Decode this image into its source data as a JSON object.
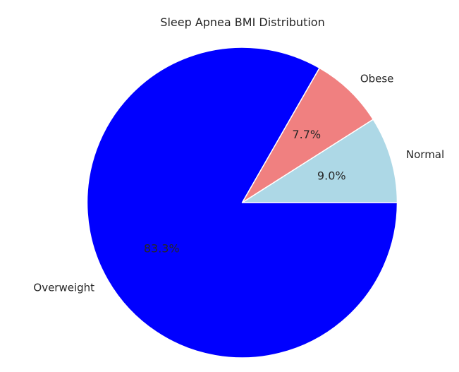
{
  "chart_data": {
    "type": "pie",
    "title": "Sleep Apnea BMI Distribution",
    "start_angle_deg": 0,
    "direction": "counterclockwise",
    "slices": [
      {
        "label": "Normal",
        "value": 9.0,
        "pct_text": "9.0%",
        "color": "#add8e6"
      },
      {
        "label": "Obese",
        "value": 7.7,
        "pct_text": "7.7%",
        "color": "#f08080"
      },
      {
        "label": "Overweight",
        "value": 83.3,
        "pct_text": "83.3%",
        "color": "#0000ff"
      }
    ],
    "wedge_edge_color": "#ffffff"
  }
}
